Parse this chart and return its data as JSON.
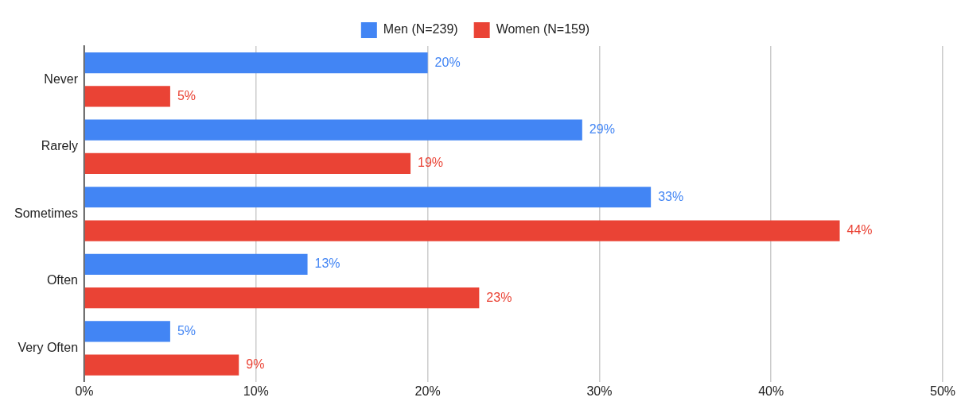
{
  "chart_data": {
    "type": "bar",
    "orientation": "horizontal",
    "categories": [
      "Never",
      "Rarely",
      "Sometimes",
      "Often",
      "Very Often"
    ],
    "series": [
      {
        "name": "Men (N=239)",
        "color": "#4285f4",
        "values": [
          20,
          29,
          33,
          13,
          5
        ],
        "value_labels": [
          "20%",
          "29%",
          "33%",
          "13%",
          "5%"
        ]
      },
      {
        "name": "Women (N=159)",
        "color": "#ea4335",
        "values": [
          5,
          19,
          44,
          23,
          9
        ],
        "value_labels": [
          "5%",
          "19%",
          "44%",
          "23%",
          "9%"
        ]
      }
    ],
    "xlim": [
      0,
      50
    ],
    "xticks": [
      {
        "value": 0,
        "label": "0%"
      },
      {
        "value": 10,
        "label": "10%"
      },
      {
        "value": 20,
        "label": "20%"
      },
      {
        "value": 30,
        "label": "30%"
      },
      {
        "value": 40,
        "label": "40%"
      },
      {
        "value": 50,
        "label": "50%"
      }
    ],
    "grid": "x",
    "legend": "top"
  }
}
